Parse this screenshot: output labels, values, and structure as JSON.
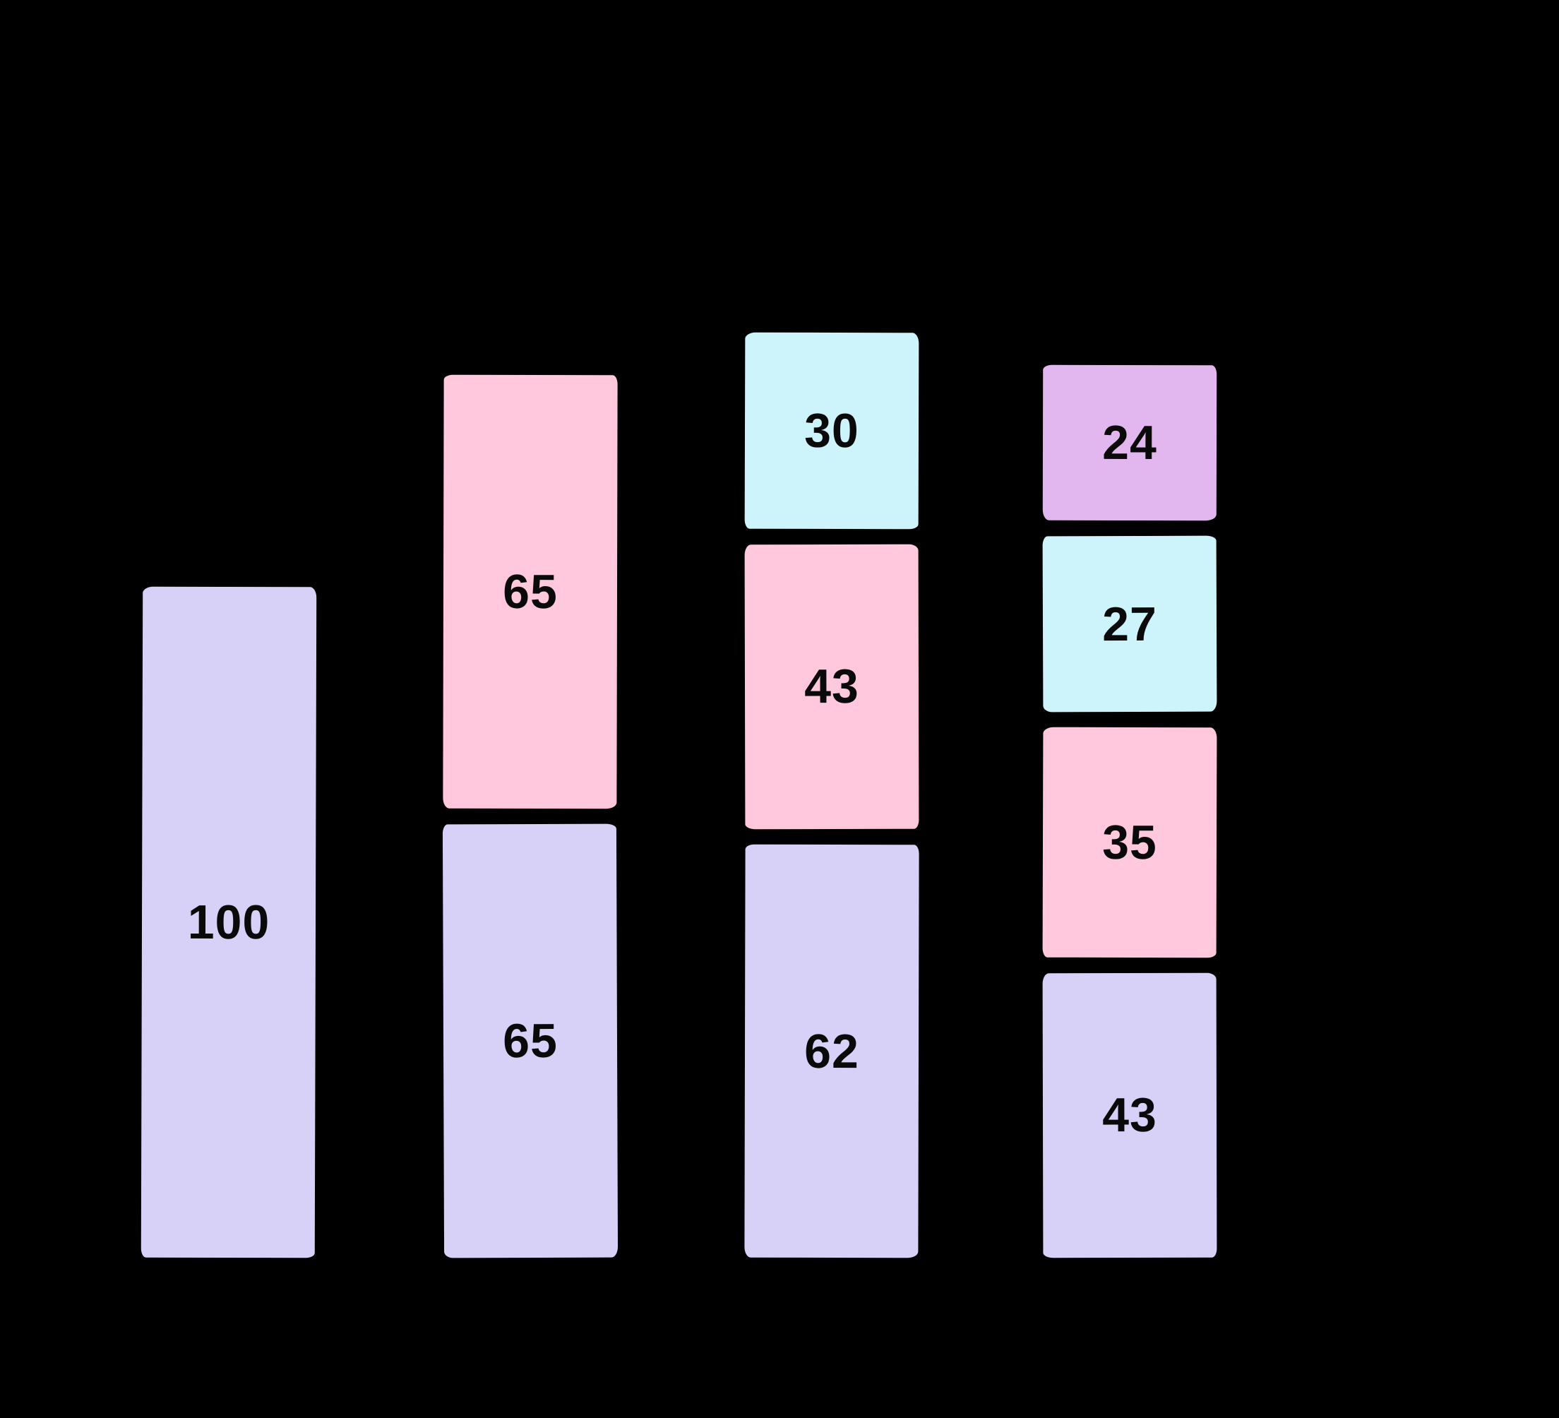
{
  "canvas": {
    "background": "#000000"
  },
  "chart_data": {
    "type": "bar",
    "subtype": "stacked-vertical",
    "axes_visible": false,
    "legend": null,
    "background": "#000000",
    "label_color": "#0a0a0a",
    "palette": {
      "lavender": "#d8d1f7",
      "pink": "#ffc8dc",
      "cyan": "#cdf4fa",
      "purple": "#e2b7ef"
    },
    "bars": [
      {
        "segments": [
          {
            "value": 100,
            "color": "lavender",
            "label": "100"
          }
        ]
      },
      {
        "segments": [
          {
            "value": 65,
            "color": "lavender",
            "label": "65"
          },
          {
            "value": 65,
            "color": "pink",
            "label": "65"
          }
        ]
      },
      {
        "segments": [
          {
            "value": 62,
            "color": "lavender",
            "label": "62"
          },
          {
            "value": 43,
            "color": "pink",
            "label": "43"
          },
          {
            "value": 30,
            "color": "cyan",
            "label": "30"
          }
        ]
      },
      {
        "segments": [
          {
            "value": 43,
            "color": "lavender",
            "label": "43"
          },
          {
            "value": 35,
            "color": "pink",
            "label": "35"
          },
          {
            "value": 27,
            "color": "cyan",
            "label": "27"
          },
          {
            "value": 24,
            "color": "purple",
            "label": "24"
          }
        ]
      }
    ],
    "notes": "segments listed bottom-to-top; each segment shows its value centered"
  }
}
